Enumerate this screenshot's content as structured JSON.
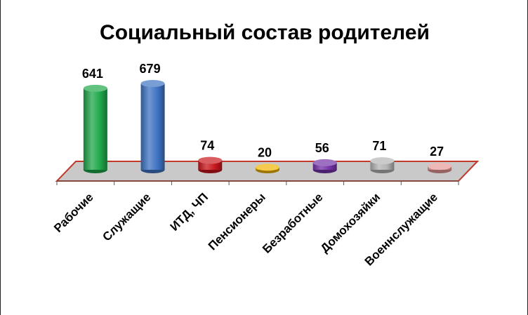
{
  "chart_data": {
    "type": "bar",
    "title": "Социальный состав родителей",
    "categories": [
      "Рабочие",
      "Служащие",
      "ИТД, ЧП",
      "Пенсионеры",
      "Безработные",
      "Домохозяйки",
      "Военнслужащие"
    ],
    "values": [
      641,
      679,
      74,
      20,
      56,
      71,
      27
    ],
    "colors": [
      "#1fa84a",
      "#3f74c4",
      "#c8161d",
      "#f0b400",
      "#7432a8",
      "#b4b4b4",
      "#e59a96"
    ],
    "ylim": [
      0,
      700
    ],
    "legend": "none",
    "grid": false,
    "floor_color": "#c9c9c9",
    "floor_edge_color": "#c0392b"
  }
}
